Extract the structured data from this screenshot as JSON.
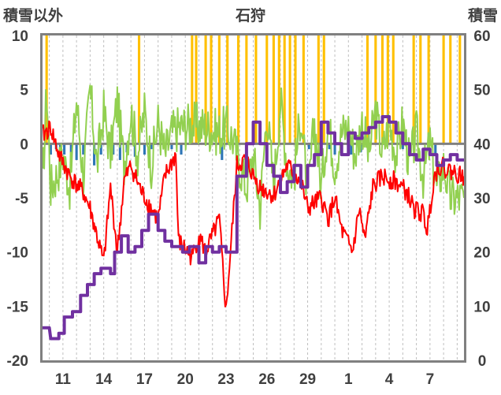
{
  "chart_data": {
    "type": "line",
    "title": "石狩",
    "left_axis_label": "積雪以外",
    "right_axis_label": "積雪",
    "left_ylim": [
      -20,
      10
    ],
    "left_ticks": [
      "10",
      "5",
      "0",
      "-5",
      "-10",
      "-15",
      "-20"
    ],
    "right_ylim": [
      0,
      60
    ],
    "right_ticks": [
      "60",
      "50",
      "40",
      "30",
      "20",
      "10",
      "0"
    ],
    "x_tick_labels": [
      "11",
      "14",
      "17",
      "20",
      "23",
      "26",
      "29",
      "1",
      "4",
      "7"
    ],
    "x_range_days": 31,
    "x_tick_start_day": 1.5,
    "grid": "vertical dashed",
    "colors": {
      "temperature": "#ff0000",
      "secondary": "#92d050",
      "precip_pos": "#ffc000",
      "precip_neg": "#2e75b6",
      "snow_depth": "#7030a0",
      "zero_line": "#808080",
      "frame": "#808080"
    },
    "temperature_keypoints": [
      [
        0,
        0.8
      ],
      [
        0.6,
        1.5
      ],
      [
        1.2,
        -1
      ],
      [
        2,
        -3
      ],
      [
        3,
        -4.5
      ],
      [
        3.5,
        -6
      ],
      [
        4.5,
        -11
      ],
      [
        5,
        -4
      ],
      [
        5.5,
        -10
      ],
      [
        6,
        -3.5
      ],
      [
        6.5,
        -2
      ],
      [
        7.3,
        -4.5
      ],
      [
        8.5,
        -7
      ],
      [
        9,
        -3
      ],
      [
        9.8,
        -1
      ],
      [
        10,
        -9
      ],
      [
        11,
        -10.5
      ],
      [
        11.5,
        -8.5
      ],
      [
        12,
        -10
      ],
      [
        13,
        -7
      ],
      [
        13.5,
        -15.5
      ],
      [
        14,
        -7
      ],
      [
        14.3,
        -2
      ],
      [
        15,
        -1.5
      ],
      [
        15.5,
        -3
      ],
      [
        16,
        -4
      ],
      [
        17,
        -4.8
      ],
      [
        18,
        -2
      ],
      [
        19,
        -3.5
      ],
      [
        19.5,
        -6
      ],
      [
        20.5,
        -5
      ],
      [
        21,
        -7
      ],
      [
        21.5,
        -5
      ],
      [
        22,
        -8
      ],
      [
        22.8,
        -10
      ],
      [
        23.3,
        -6
      ],
      [
        23.7,
        -9
      ],
      [
        24.3,
        -4
      ],
      [
        25,
        -3
      ],
      [
        26,
        -3.5
      ],
      [
        26.8,
        -4.5
      ],
      [
        27.3,
        -6
      ],
      [
        28,
        -6.5
      ],
      [
        28.3,
        -8
      ],
      [
        28.8,
        -3
      ],
      [
        29.2,
        -2
      ],
      [
        30,
        -2.5
      ],
      [
        31,
        -3
      ]
    ],
    "secondary_keypoints": [
      [
        0,
        -4
      ],
      [
        0.3,
        5
      ],
      [
        0.6,
        -4
      ],
      [
        1,
        -3
      ],
      [
        1.5,
        -1
      ],
      [
        2,
        -4
      ],
      [
        2.5,
        4
      ],
      [
        3,
        -3
      ],
      [
        3.5,
        5
      ],
      [
        4,
        -2
      ],
      [
        4.5,
        3
      ],
      [
        5,
        -1
      ],
      [
        5.5,
        4
      ],
      [
        6,
        -2
      ],
      [
        6.5,
        3
      ],
      [
        7,
        -1
      ],
      [
        7.5,
        3
      ],
      [
        8,
        -2
      ],
      [
        8.5,
        2
      ],
      [
        9,
        -1
      ],
      [
        9.5,
        1
      ],
      [
        10,
        1.5
      ],
      [
        11,
        1.8
      ],
      [
        12,
        1.5
      ],
      [
        13,
        1
      ],
      [
        13.5,
        1.5
      ],
      [
        14,
        0.5
      ],
      [
        14.5,
        -2
      ],
      [
        15,
        -4
      ],
      [
        15.5,
        -1
      ],
      [
        16,
        -6
      ],
      [
        16.5,
        3
      ],
      [
        17,
        -4
      ],
      [
        17.5,
        4
      ],
      [
        18,
        -2
      ],
      [
        18.5,
        -3
      ],
      [
        19,
        3
      ],
      [
        19.5,
        -5
      ],
      [
        20,
        2
      ],
      [
        20.5,
        -4
      ],
      [
        21,
        2
      ],
      [
        21.5,
        -2
      ],
      [
        22,
        1
      ],
      [
        22.5,
        1.5
      ],
      [
        23,
        -1
      ],
      [
        23.5,
        2
      ],
      [
        24,
        -1
      ],
      [
        24.5,
        3
      ],
      [
        25,
        -1
      ],
      [
        25.5,
        2
      ],
      [
        26,
        -1
      ],
      [
        26.5,
        2
      ],
      [
        27,
        -2
      ],
      [
        27.5,
        1
      ],
      [
        28,
        -3
      ],
      [
        28.5,
        0
      ],
      [
        29,
        -4
      ],
      [
        29.5,
        -2
      ],
      [
        30,
        -5
      ],
      [
        31,
        -5
      ]
    ],
    "snow_depth_steps": [
      [
        0,
        6
      ],
      [
        0.5,
        6
      ],
      [
        0.6,
        4
      ],
      [
        1.2,
        4
      ],
      [
        1.2,
        5
      ],
      [
        1.6,
        5
      ],
      [
        1.6,
        8
      ],
      [
        2.2,
        8
      ],
      [
        2.2,
        9
      ],
      [
        2.8,
        9
      ],
      [
        2.8,
        12
      ],
      [
        3.3,
        12
      ],
      [
        3.3,
        14
      ],
      [
        3.8,
        14
      ],
      [
        3.8,
        16
      ],
      [
        4.3,
        16
      ],
      [
        4.3,
        17
      ],
      [
        5,
        17
      ],
      [
        5,
        16
      ],
      [
        5.3,
        16
      ],
      [
        5.3,
        20
      ],
      [
        5.8,
        20
      ],
      [
        5.8,
        23
      ],
      [
        6.3,
        23
      ],
      [
        6.3,
        20
      ],
      [
        6.8,
        20
      ],
      [
        6.8,
        21
      ],
      [
        7.3,
        21
      ],
      [
        7.3,
        24
      ],
      [
        7.8,
        24
      ],
      [
        7.8,
        27
      ],
      [
        8.5,
        27
      ],
      [
        8.5,
        24
      ],
      [
        9,
        24
      ],
      [
        9,
        22
      ],
      [
        9.5,
        22
      ],
      [
        9.5,
        21
      ],
      [
        10.3,
        21
      ],
      [
        10.3,
        20
      ],
      [
        10.8,
        20
      ],
      [
        10.8,
        21
      ],
      [
        11.5,
        21
      ],
      [
        11.5,
        18
      ],
      [
        12,
        18
      ],
      [
        12,
        21
      ],
      [
        12.5,
        21
      ],
      [
        12.5,
        20
      ],
      [
        13,
        20
      ],
      [
        13,
        21
      ],
      [
        13.5,
        21
      ],
      [
        13.5,
        20
      ],
      [
        14.3,
        20
      ],
      [
        14.3,
        34
      ],
      [
        15,
        34
      ],
      [
        15,
        40
      ],
      [
        15.5,
        40
      ],
      [
        15.5,
        44
      ],
      [
        16,
        44
      ],
      [
        16,
        40
      ],
      [
        16.5,
        40
      ],
      [
        16.5,
        36
      ],
      [
        17,
        36
      ],
      [
        17,
        34
      ],
      [
        17.5,
        34
      ],
      [
        17.5,
        31
      ],
      [
        18,
        31
      ],
      [
        18,
        33
      ],
      [
        18.5,
        33
      ],
      [
        18.5,
        36
      ],
      [
        19,
        36
      ],
      [
        19,
        32
      ],
      [
        19.5,
        32
      ],
      [
        19.5,
        36
      ],
      [
        20,
        36
      ],
      [
        20,
        38
      ],
      [
        20.5,
        38
      ],
      [
        20.5,
        44
      ],
      [
        21,
        44
      ],
      [
        21,
        42
      ],
      [
        21.5,
        42
      ],
      [
        21.5,
        40
      ],
      [
        22,
        40
      ],
      [
        22,
        38
      ],
      [
        22.5,
        38
      ],
      [
        22.5,
        42
      ],
      [
        23,
        42
      ],
      [
        23,
        41
      ],
      [
        23.5,
        41
      ],
      [
        23.5,
        42
      ],
      [
        24,
        42
      ],
      [
        24,
        43
      ],
      [
        24.5,
        43
      ],
      [
        24.5,
        44
      ],
      [
        25,
        44
      ],
      [
        25,
        45
      ],
      [
        25.5,
        45
      ],
      [
        25.5,
        44
      ],
      [
        26,
        44
      ],
      [
        26,
        42
      ],
      [
        26.5,
        42
      ],
      [
        26.5,
        40
      ],
      [
        27,
        40
      ],
      [
        27,
        38
      ],
      [
        27.5,
        38
      ],
      [
        27.5,
        37
      ],
      [
        28,
        37
      ],
      [
        28,
        39
      ],
      [
        28.5,
        39
      ],
      [
        28.5,
        38
      ],
      [
        29,
        38
      ],
      [
        29,
        36
      ],
      [
        29.5,
        36
      ],
      [
        29.5,
        37
      ],
      [
        30,
        37
      ],
      [
        30,
        38
      ],
      [
        30.5,
        38
      ],
      [
        30.5,
        37
      ],
      [
        31,
        37
      ]
    ],
    "precip_bars": [
      [
        0.3,
        10
      ],
      [
        0.6,
        -1
      ],
      [
        1,
        -0.5
      ],
      [
        1.3,
        -1.5
      ],
      [
        1.6,
        -1
      ],
      [
        2.1,
        -0.8
      ],
      [
        2.5,
        -1.5
      ],
      [
        3,
        -1
      ],
      [
        3.8,
        -2
      ],
      [
        4.3,
        -1
      ],
      [
        5.2,
        -1
      ],
      [
        5.7,
        -1.5
      ],
      [
        6.2,
        -0.8
      ],
      [
        6.8,
        -1.2
      ],
      [
        7.1,
        10
      ],
      [
        7.5,
        -1
      ],
      [
        8,
        -0.5
      ],
      [
        9.5,
        -0.5
      ],
      [
        10.2,
        -1
      ],
      [
        11,
        10
      ],
      [
        11.3,
        10
      ],
      [
        12,
        10
      ],
      [
        12.4,
        10
      ],
      [
        13,
        10
      ],
      [
        13.2,
        -1.5
      ],
      [
        13.6,
        10
      ],
      [
        14.4,
        10
      ],
      [
        15,
        10
      ],
      [
        15.7,
        10
      ],
      [
        16.5,
        10
      ],
      [
        17,
        10
      ],
      [
        17.4,
        10
      ],
      [
        17.8,
        10
      ],
      [
        18.2,
        10
      ],
      [
        18.6,
        10
      ],
      [
        19.2,
        10
      ],
      [
        19.6,
        -0.5
      ],
      [
        20.3,
        10
      ],
      [
        20.7,
        10
      ],
      [
        21.1,
        -0.5
      ],
      [
        21.5,
        -1
      ],
      [
        22,
        -0.5
      ],
      [
        22.7,
        -1
      ],
      [
        23.4,
        -0.8
      ],
      [
        23.9,
        10
      ],
      [
        24.5,
        10
      ],
      [
        25,
        10
      ],
      [
        25.4,
        10
      ],
      [
        25.8,
        10
      ],
      [
        26.5,
        -0.5
      ],
      [
        27.3,
        10
      ],
      [
        27.8,
        10
      ],
      [
        28.4,
        10
      ],
      [
        28.9,
        -1
      ],
      [
        29.5,
        10
      ],
      [
        30,
        10
      ],
      [
        30.7,
        10
      ]
    ]
  }
}
